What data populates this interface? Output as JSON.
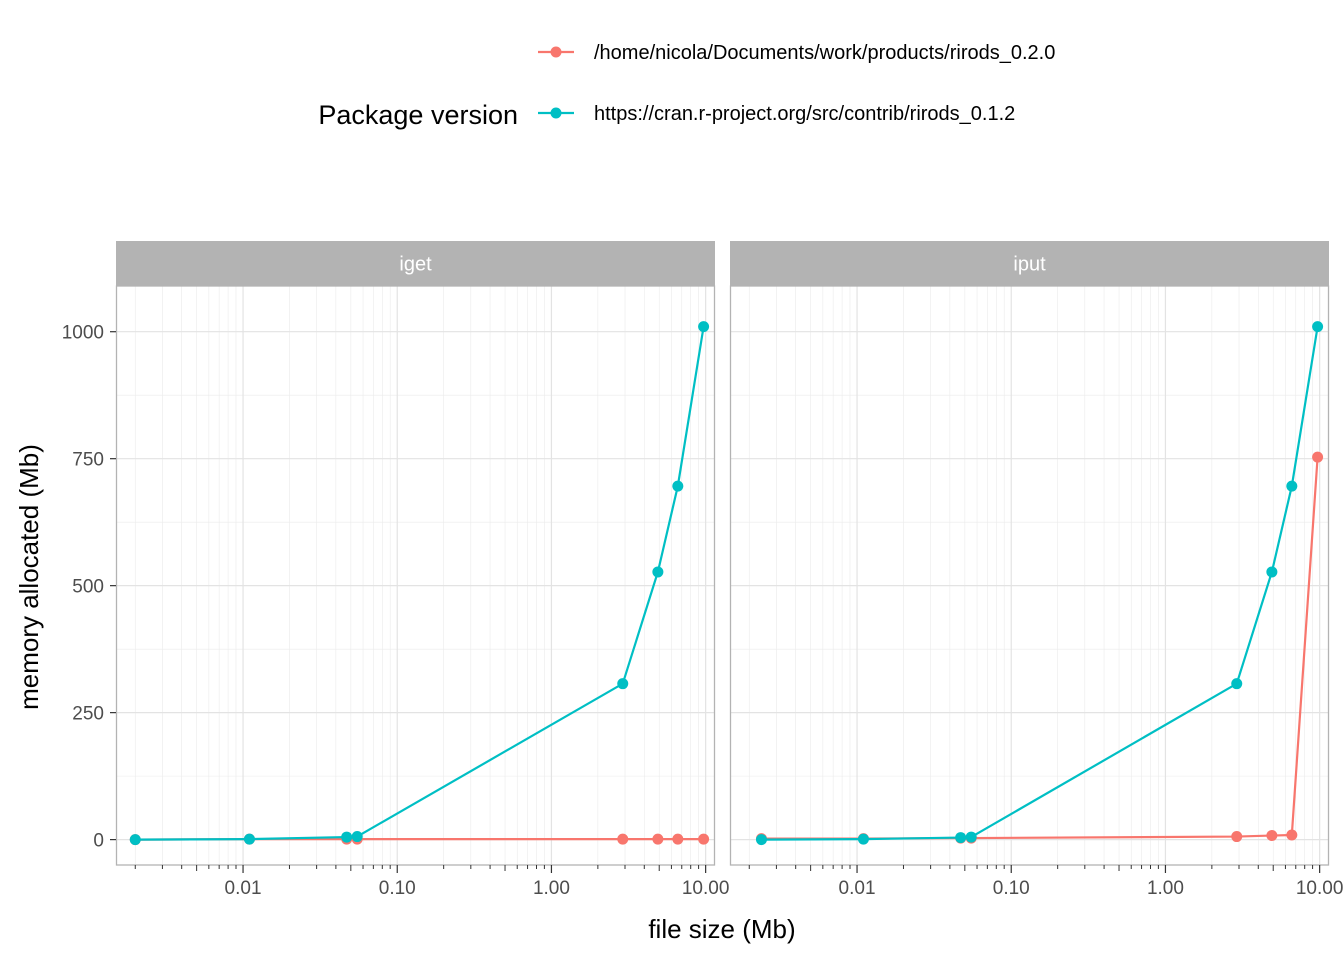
{
  "legend": {
    "title": "Package version",
    "position": "top",
    "entries": [
      {
        "label": "/home/nicola/Documents/work/products/rirods_0.2.0",
        "color": "#F8766D"
      },
      {
        "label": "https://cran.r-project.org/src/contrib/rirods_0.1.2",
        "color": "#00BFC4"
      }
    ]
  },
  "chart_data": {
    "type": "line",
    "xlabel": "file size (Mb)",
    "ylabel": "memory allocated (Mb)",
    "x_scale": "log10",
    "xlim": [
      0.0015,
      11.5
    ],
    "ylim": [
      -50,
      1090
    ],
    "x_ticks": [
      0.01,
      0.1,
      1,
      10
    ],
    "x_tick_labels": [
      "0.01",
      "0.10",
      "1.00",
      "10.00"
    ],
    "y_ticks": [
      0,
      250,
      500,
      750,
      1000
    ],
    "y_tick_labels": [
      "0",
      "250",
      "500",
      "750",
      "1000"
    ],
    "grid": true,
    "colors": {
      "series_a": "#F8766D",
      "series_b": "#00BFC4",
      "strip": "#B3B3B3",
      "grid": "#EBEBEB"
    },
    "panels": [
      {
        "title": "iget",
        "x": [
          0.002,
          0.011,
          0.047,
          0.055,
          2.9,
          4.9,
          6.6,
          9.7
        ],
        "series": [
          {
            "name": "/home/nicola/Documents/work/products/rirods_0.2.0",
            "values": [
              0,
              1,
              1,
              1,
              1,
              1,
              1,
              1
            ]
          },
          {
            "name": "https://cran.r-project.org/src/contrib/rirods_0.1.2",
            "values": [
              0,
              1,
              5,
              6,
              307,
              527,
              696,
              1010
            ]
          }
        ]
      },
      {
        "title": "iput",
        "x": [
          0.0024,
          0.011,
          0.047,
          0.055,
          2.9,
          4.9,
          6.6,
          9.7
        ],
        "series": [
          {
            "name": "/home/nicola/Documents/work/products/rirods_0.2.0",
            "values": [
              2,
              2,
              3,
              3,
              6,
              8,
              9,
              753
            ]
          },
          {
            "name": "https://cran.r-project.org/src/contrib/rirods_0.1.2",
            "values": [
              0,
              1,
              4,
              5,
              307,
              527,
              696,
              1010
            ]
          }
        ]
      }
    ]
  }
}
